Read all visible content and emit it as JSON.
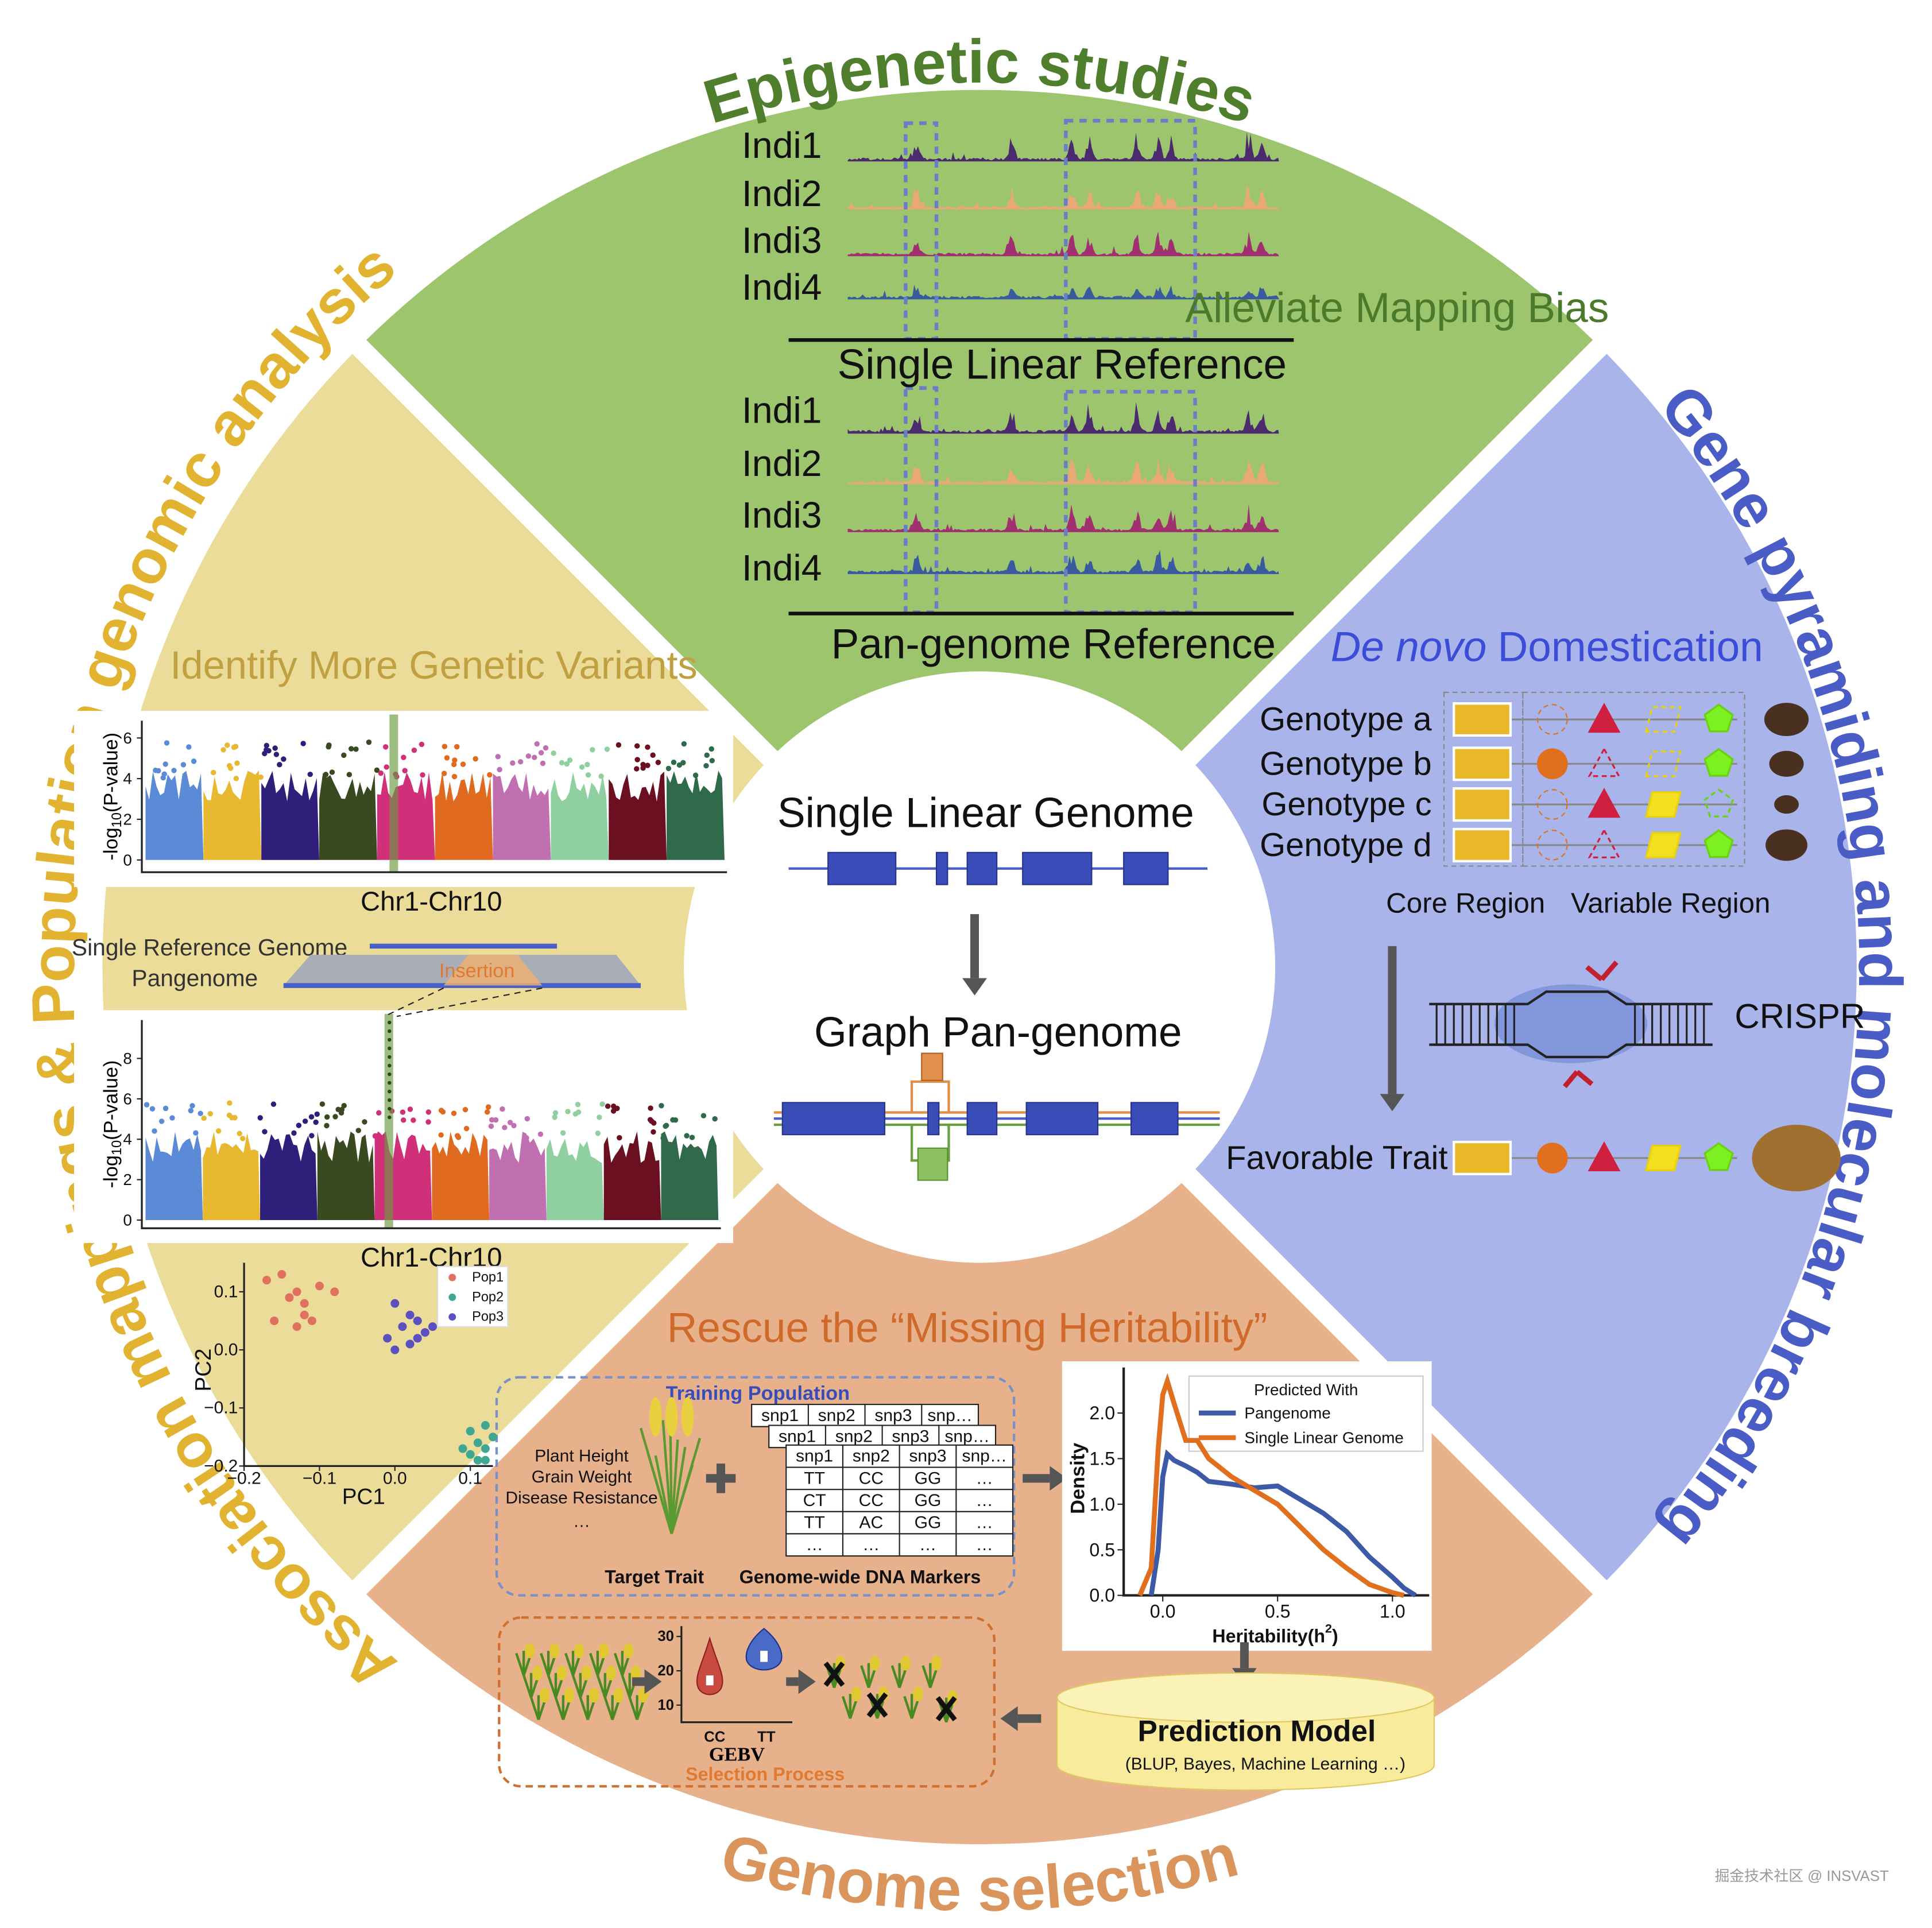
{
  "center": {
    "top": "Single Linear Genome",
    "bottom": "Graph Pan-genome"
  },
  "epigenetic": {
    "title": "Epigenetic studies",
    "note": "Alleviate Mapping Bias",
    "individuals": [
      "Indi1",
      "Indi2",
      "Indi3",
      "Indi4"
    ],
    "reference_single": "Single Linear Reference",
    "reference_pan": "Pan-genome Reference"
  },
  "breeding": {
    "title": "Gene pyramiding and molecular breeding",
    "heading_italic": "De novo",
    "heading": "Domestication",
    "genotypes": [
      "Genotype a",
      "Genotype b",
      "Genotype c",
      "Genotype d"
    ],
    "core": "Core Region",
    "variable": "Variable Region",
    "crispr": "CRISPR",
    "favorable": "Favorable Trait"
  },
  "selection": {
    "title": "Genome selection",
    "subtitle": "Rescue the “Missing Heritability”",
    "training": "Training Population",
    "traits": [
      "Plant Height",
      "Grain Weight",
      "Disease Resistance",
      "…"
    ],
    "target": "Target Trait",
    "markers": "Genome-wide DNA Markers",
    "table_header": [
      "snp1",
      "snp2",
      "snp3",
      "snp…"
    ],
    "table_rows": [
      [
        "TT",
        "CC",
        "GG",
        "…"
      ],
      [
        "CT",
        "CC",
        "GG",
        "…"
      ],
      [
        "TT",
        "AC",
        "GG",
        "…"
      ],
      [
        "…",
        "…",
        "…",
        "…"
      ]
    ],
    "density": {
      "legend_title": "Predicted With",
      "y_label": "Density",
      "x_label": [
        "Heritability(h",
        "2",
        ")"
      ],
      "xlim": [
        -0.17,
        1.16
      ],
      "ylim": [
        0,
        2.5
      ],
      "xticks": [
        {
          "value": 0,
          "label": "0.0"
        },
        {
          "value": 0.5,
          "label": "0.5"
        },
        {
          "value": 1,
          "label": "1.0"
        }
      ],
      "yticks": [
        {
          "value": 0,
          "label": "0.0"
        },
        {
          "value": 0.5,
          "label": "0.5"
        },
        {
          "value": 1,
          "label": "1.0"
        },
        {
          "value": 1.5,
          "label": "1.5"
        },
        {
          "value": 2,
          "label": "2.0"
        }
      ],
      "series": [
        {
          "name": "Pangenome",
          "color": "#3c5aa6",
          "x": [
            -0.05,
            -0.02,
            0,
            0.02,
            0.05,
            0.1,
            0.15,
            0.2,
            0.3,
            0.4,
            0.5,
            0.6,
            0.7,
            0.8,
            0.9,
            1.0,
            1.05,
            1.1
          ],
          "y": [
            0,
            0.5,
            1.3,
            1.55,
            1.48,
            1.42,
            1.35,
            1.25,
            1.22,
            1.18,
            1.2,
            1.05,
            0.9,
            0.7,
            0.42,
            0.2,
            0.08,
            0
          ]
        },
        {
          "name": "Single Linear Genome",
          "color": "#e0701e",
          "x": [
            -0.1,
            -0.05,
            -0.02,
            0,
            0.02,
            0.05,
            0.1,
            0.15,
            0.2,
            0.3,
            0.4,
            0.5,
            0.6,
            0.7,
            0.8,
            0.9,
            1.0,
            1.05
          ],
          "y": [
            0,
            0.3,
            1.6,
            2.2,
            2.35,
            2.1,
            1.7,
            1.7,
            1.5,
            1.3,
            1.15,
            1.0,
            0.75,
            0.5,
            0.3,
            0.12,
            0.03,
            0
          ]
        }
      ]
    },
    "model": "Prediction Model",
    "model_note": "(BLUP, Bayes, Machine Learning …)",
    "violin": {
      "ylim": [
        5,
        33
      ],
      "yticks": [
        10,
        20,
        30
      ],
      "groups": [
        "CC",
        "TT"
      ],
      "x_label": "GEBV"
    },
    "process": "Selection Process"
  },
  "association": {
    "title": "Association mappings & Population genomic analysis",
    "subtitle": "Identify More Genetic Variants",
    "y_label": [
      "-log",
      "10",
      "(P-value)"
    ],
    "manhattan": [
      {
        "ylim": [
          -0.3,
          6.85
        ],
        "yticks": [
          0,
          2,
          4,
          6
        ],
        "x_label": "Chr1-Chr10"
      },
      {
        "ylim": [
          -0.1,
          9.9
        ],
        "yticks": [
          0,
          2,
          4,
          6,
          8
        ],
        "x_label": "Chr1-Chr10"
      }
    ],
    "single_ref": "Single Reference Genome",
    "pangenome": "Pangenome",
    "insertion": "Insertion",
    "pca": {
      "x_label": "PC1",
      "y_label": "PC2",
      "xlim": [
        -0.2,
        0.13
      ],
      "ylim": [
        -0.2,
        0.15
      ],
      "xticks": [
        {
          "value": -0.2,
          "label": "−0.2"
        },
        {
          "value": -0.1,
          "label": "−0.1"
        },
        {
          "value": 0,
          "label": "0.0"
        },
        0.1
      ],
      "yticks": [
        0.1,
        {
          "value": 0,
          "label": "0.0"
        },
        {
          "value": -0.1,
          "label": "−0.1"
        },
        {
          "value": -0.2,
          "label": "−0.2"
        }
      ],
      "series": [
        {
          "name": "Pop1",
          "color": "#e07060",
          "x": [
            -0.17,
            -0.15,
            -0.13,
            -0.12,
            -0.14,
            -0.1,
            -0.16,
            -0.13,
            -0.11,
            -0.08,
            -0.12
          ],
          "y": [
            0.12,
            0.13,
            0.1,
            0.08,
            0.09,
            0.11,
            0.05,
            0.04,
            0.05,
            0.1,
            0.06
          ]
        },
        {
          "name": "Pop2",
          "color": "#40a890",
          "x": [
            0.1,
            0.11,
            0.12,
            0.1,
            0.12,
            0.11,
            0.13,
            0.09,
            0.12
          ],
          "y": [
            -0.14,
            -0.16,
            -0.17,
            -0.18,
            -0.13,
            -0.19,
            -0.15,
            -0.17,
            -0.19
          ]
        },
        {
          "name": "Pop3",
          "color": "#5a50c0",
          "x": [
            0,
            0.02,
            0.01,
            0.03,
            0.04,
            -0.01,
            0.02,
            0.05,
            0,
            0.03
          ],
          "y": [
            0.08,
            0.06,
            0.04,
            0.05,
            0.03,
            0.02,
            0.01,
            0.04,
            0,
            0.02
          ]
        }
      ]
    }
  },
  "watermark": "掘金技术社区 @ INSVAST"
}
